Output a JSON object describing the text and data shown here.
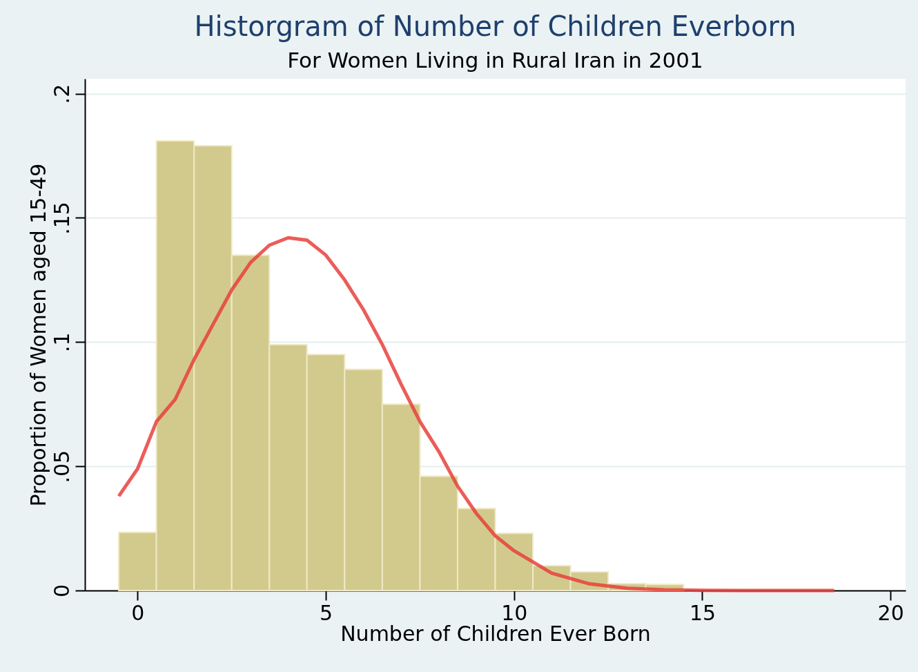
{
  "chart_data": {
    "type": "histogram",
    "title": "Historgram of Number of Children Everborn",
    "subtitle": "For Women Living in Rural Iran in 2001",
    "xlabel": "Number of Children Ever Born",
    "ylabel": "Proportion of Women aged 15-49",
    "bins": [
      -0.5,
      0.5,
      1.5,
      2.5,
      3.5,
      4.5,
      5.5,
      6.5,
      7.5,
      8.5,
      9.5,
      10.5,
      11.5,
      12.5,
      13.5,
      14.5
    ],
    "values": [
      0.0234,
      0.181,
      0.179,
      0.135,
      0.099,
      0.095,
      0.089,
      0.075,
      0.046,
      0.033,
      0.023,
      0.01,
      0.0075,
      0.0028,
      0.0024
    ],
    "color": "#d2ca8c",
    "series": [
      {
        "type": "line",
        "color": "#e8413c",
        "x": [
          -0.5,
          0,
          0.5,
          1,
          1.5,
          2,
          2.5,
          3,
          3.5,
          4,
          4.5,
          5,
          5.5,
          6,
          6.5,
          7,
          7.5,
          8,
          8.5,
          9,
          9.5,
          10,
          11,
          12,
          13,
          14,
          15,
          16,
          17,
          18,
          18.5
        ],
        "values": [
          0.038,
          0.049,
          0.068,
          0.077,
          0.093,
          0.107,
          0.121,
          0.132,
          0.139,
          0.142,
          0.141,
          0.135,
          0.125,
          0.113,
          0.099,
          0.083,
          0.068,
          0.056,
          0.042,
          0.031,
          0.022,
          0.016,
          0.007,
          0.0027,
          0.0009,
          0.0003,
          0.0001,
          0,
          0,
          0,
          0
        ]
      }
    ],
    "xlim": [
      -1.4,
      20.4
    ],
    "xticks": [
      0,
      5,
      10,
      15,
      20
    ],
    "ylim": [
      0,
      0.206
    ],
    "yticks": [
      {
        "value": 0,
        "label": "0"
      },
      {
        "value": 0.05,
        "label": ".05"
      },
      {
        "value": 0.1,
        "label": ".1"
      },
      {
        "value": 0.15,
        "label": ".15"
      },
      {
        "value": 0.2,
        "label": ".2"
      }
    ],
    "grid": "y"
  }
}
